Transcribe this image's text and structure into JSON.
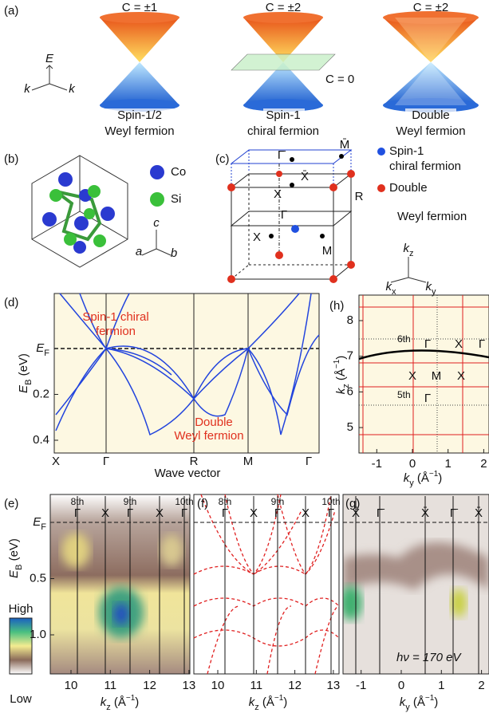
{
  "a": {
    "label": "(a)",
    "axes": [
      "E",
      "k",
      "k"
    ],
    "cones": [
      {
        "chern": "C = ±1",
        "caption": [
          "Spin-1/2",
          "Weyl fermion"
        ]
      },
      {
        "chern": "C = ±2",
        "plane": "C = 0",
        "caption": [
          "Spin-1",
          "chiral fermion"
        ]
      },
      {
        "chern": "C = ±2",
        "caption": [
          "Double",
          "Weyl fermion"
        ]
      }
    ]
  },
  "b": {
    "label": "(b)",
    "legend": [
      "Co",
      "Si"
    ],
    "axes": [
      "c",
      "a",
      "b"
    ]
  },
  "c": {
    "label": "(c)",
    "points": [
      "Γ̄",
      "M̄",
      "X̄",
      "X",
      "R",
      "Γ",
      "X",
      "M"
    ],
    "legend": [
      [
        "Spin-1",
        "chiral fermion"
      ],
      [
        "Double",
        "Weyl fermion"
      ]
    ],
    "axes": [
      [
        "k",
        "z"
      ],
      [
        "k",
        "x"
      ],
      [
        "k",
        "y"
      ]
    ]
  },
  "d": {
    "label": "(d)",
    "ylabel": [
      "E",
      "B",
      " (eV)"
    ],
    "yticks": [
      {
        "value": 0,
        "label": [
          "E",
          "F"
        ]
      },
      0.2,
      0.4
    ],
    "xticks": [
      "X",
      "Γ",
      "R",
      "M",
      "Γ"
    ],
    "xlabel": "Wave vector",
    "annotations": [
      [
        "Spin-1 chiral",
        "fermion"
      ],
      [
        "Double",
        "Weyl fermion"
      ]
    ]
  },
  "h": {
    "label": "(h)",
    "ylabel": [
      "k",
      "z",
      " (Å",
      "−1",
      ")"
    ],
    "xlabel": [
      "k",
      "y",
      " (Å",
      "−1",
      ")"
    ],
    "yticks": [
      5,
      6,
      7,
      8
    ],
    "xticks": [
      -1,
      0,
      1,
      2
    ],
    "zones": [
      "6th",
      "5th"
    ],
    "points": [
      "Γ",
      "X",
      "Γ",
      "X",
      "M",
      "X",
      "Γ"
    ]
  },
  "e": {
    "label": "(e)",
    "top": [
      {
        "zone": "8th",
        "point": "Γ"
      },
      {
        "point": "X"
      },
      {
        "zone": "9th",
        "point": "Γ"
      },
      {
        "point": "X"
      },
      {
        "zone": "10th",
        "point": "Γ"
      }
    ],
    "ylabel": [
      "E",
      "B",
      " (eV)"
    ],
    "yticks": [
      {
        "value": 0,
        "label": [
          "E",
          "F"
        ]
      },
      0.5,
      {
        "value": 1,
        "label": "1.0"
      }
    ],
    "xticks": [
      10,
      11,
      12,
      13
    ],
    "xlabel": [
      "k",
      "z",
      " (Å",
      "−1",
      ")"
    ],
    "colorbar": [
      "High",
      "Low"
    ]
  },
  "f": {
    "label": "(f)",
    "top": [
      {
        "zone": "8th",
        "point": "Γ"
      },
      {
        "point": "X"
      },
      {
        "zone": "9th",
        "point": "Γ"
      },
      {
        "point": "X"
      },
      {
        "zone": "10th",
        "point": "Γ"
      }
    ],
    "xticks": [
      10,
      11,
      12,
      13
    ],
    "xlabel": [
      "k",
      "z",
      " (Å",
      "−1",
      ")"
    ]
  },
  "g": {
    "label": "(g)",
    "top": [
      {
        "point": "X̄"
      },
      {
        "point": "Γ̄"
      },
      {
        "point": "X̄"
      },
      {
        "point": "Γ̄"
      },
      {
        "point": "X̄"
      }
    ],
    "xticks": [
      -1,
      0,
      1,
      2
    ],
    "xlabel": [
      "k",
      "y",
      " (Å",
      "−1",
      ")"
    ],
    "note": "hν = 170 eV"
  }
}
